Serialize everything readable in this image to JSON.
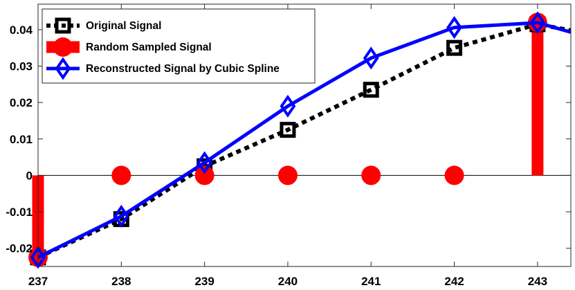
{
  "chart_data": {
    "type": "line",
    "xlim": [
      237,
      243.4
    ],
    "ylim": [
      -0.025,
      0.047
    ],
    "xticks": [
      237,
      238,
      239,
      240,
      241,
      242,
      243
    ],
    "xtick_labels": [
      "237",
      "238",
      "239",
      "240",
      "241",
      "242",
      "243"
    ],
    "yticks": [
      -0.02,
      -0.01,
      0,
      0.01,
      0.02,
      0.03,
      0.04
    ],
    "ytick_labels": [
      "-0.02",
      "-0.01",
      "0",
      "0.01",
      "0.02",
      "0.03",
      "0.04"
    ],
    "grid": false,
    "legend_position": "top-left",
    "series": [
      {
        "name": "Original Signal",
        "style": "dotted-line-square-markers",
        "color": "#000000",
        "x": [
          237,
          238,
          239,
          240,
          241,
          242,
          243,
          243.4
        ],
        "y": [
          -0.0225,
          -0.012,
          0.0025,
          0.0125,
          0.0235,
          0.035,
          0.0415,
          0.0398
        ],
        "marker_x": [
          237,
          238,
          239,
          240,
          241,
          242,
          243
        ]
      },
      {
        "name": "Random Sampled Signal",
        "style": "stem-circle-markers",
        "color": "#ff0000",
        "x": [
          237,
          238,
          239,
          240,
          241,
          242,
          243
        ],
        "y": [
          -0.0225,
          0,
          0,
          0,
          0,
          0,
          0.042
        ]
      },
      {
        "name": "Reconstructed Signal by Cubic Spline",
        "style": "solid-line-diamond-markers",
        "color": "#0000ff",
        "x": [
          237,
          238,
          239,
          240,
          241,
          242,
          243,
          243.4
        ],
        "y": [
          -0.0225,
          -0.0112,
          0.0035,
          0.019,
          0.0322,
          0.0406,
          0.0419,
          0.0393
        ],
        "marker_x": [
          237,
          238,
          239,
          240,
          241,
          242,
          243
        ]
      }
    ]
  }
}
